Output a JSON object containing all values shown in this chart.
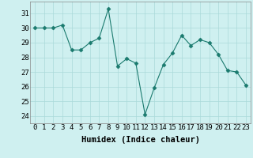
{
  "x": [
    0,
    1,
    2,
    3,
    4,
    5,
    6,
    7,
    8,
    9,
    10,
    11,
    12,
    13,
    14,
    15,
    16,
    17,
    18,
    19,
    20,
    21,
    22,
    23
  ],
  "y": [
    30.0,
    30.0,
    30.0,
    30.2,
    28.5,
    28.5,
    29.0,
    29.3,
    31.3,
    27.4,
    27.9,
    27.6,
    24.1,
    25.9,
    27.5,
    28.3,
    29.5,
    28.8,
    29.2,
    29.0,
    28.2,
    27.1,
    27.0,
    26.1
  ],
  "line_color": "#1a7a6e",
  "marker": "D",
  "marker_size": 2.5,
  "bg_color": "#cff0f0",
  "grid_color": "#aadada",
  "xlabel": "Humidex (Indice chaleur)",
  "xlim": [
    -0.5,
    23.5
  ],
  "ylim": [
    23.5,
    31.8
  ],
  "yticks": [
    24,
    25,
    26,
    27,
    28,
    29,
    30,
    31
  ],
  "xticks": [
    0,
    1,
    2,
    3,
    4,
    5,
    6,
    7,
    8,
    9,
    10,
    11,
    12,
    13,
    14,
    15,
    16,
    17,
    18,
    19,
    20,
    21,
    22,
    23
  ],
  "xtick_labels": [
    "0",
    "1",
    "2",
    "3",
    "4",
    "5",
    "6",
    "7",
    "8",
    "9",
    "10",
    "11",
    "12",
    "13",
    "14",
    "15",
    "16",
    "17",
    "18",
    "19",
    "20",
    "21",
    "22",
    "23"
  ],
  "tick_fontsize": 6.5,
  "xlabel_fontsize": 7.5
}
